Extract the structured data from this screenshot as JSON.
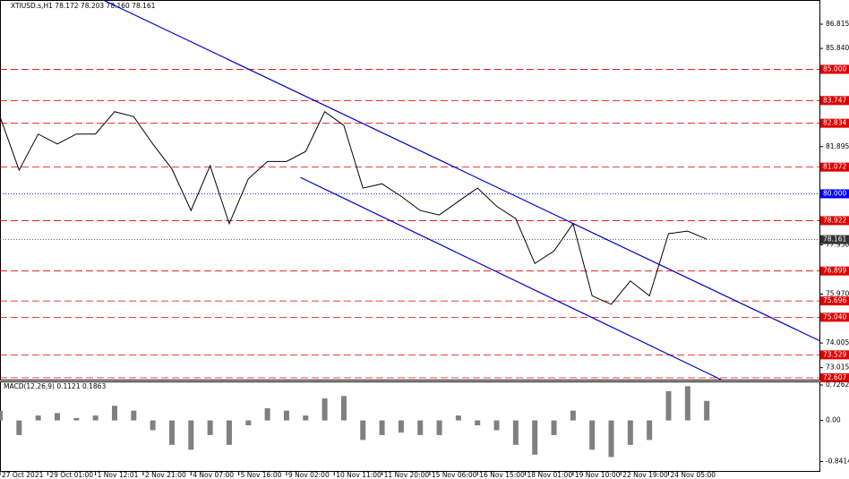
{
  "chart_data": {
    "type": "line",
    "title": "XTIUSD.s,H1  78.172 78.203 78.160 78.161",
    "xlim": [
      0,
      171.6
    ],
    "ylim": [
      72.535,
      87.786
    ],
    "xticks": [
      {
        "value": 0,
        "label": "27 Oct 2021"
      },
      {
        "value": 10,
        "label": "29 Oct 01:00"
      },
      {
        "value": 20,
        "label": "1 Nov 12:01"
      },
      {
        "value": 30,
        "label": "2 Nov 21:00"
      },
      {
        "value": 40,
        "label": "4 Nov 07:00"
      },
      {
        "value": 50,
        "label": "5 Nov 16:00"
      },
      {
        "value": 60,
        "label": "9 Nov 02:00"
      },
      {
        "value": 70,
        "label": "10 Nov 11:00"
      },
      {
        "value": 80,
        "label": "11 Nov 20:00"
      },
      {
        "value": 90,
        "label": "15 Nov 06:00"
      },
      {
        "value": 100,
        "label": "16 Nov 15:00"
      },
      {
        "value": 110,
        "label": "18 Nov 01:00"
      },
      {
        "value": 120,
        "label": "19 Nov 10:00"
      },
      {
        "value": 130,
        "label": "22 Nov 19:00"
      },
      {
        "value": 140,
        "label": "24 Nov 05:00"
      }
    ],
    "yticks": [
      86.815,
      {
        "value": 85.84,
        "label": "85.840"
      },
      81.895,
      {
        "value": 77.95,
        "label": "77.950"
      },
      {
        "value": 75.97,
        "label": "75.970"
      },
      74.005,
      73.015
    ],
    "levels": [
      {
        "value": 85,
        "label": "85.000",
        "color": "#e00000"
      },
      {
        "value": 83.747,
        "label": "83.747",
        "color": "#e00000"
      },
      {
        "value": 82.834,
        "label": "82.834",
        "color": "#e00000"
      },
      {
        "value": 81.072,
        "label": "81.072",
        "color": "#e00000"
      },
      {
        "value": 80,
        "label": "80.000",
        "color": "#0000ff"
      },
      {
        "value": 78.922,
        "label": "78.922",
        "color": "#e00000"
      },
      {
        "value": 78.161,
        "label": "78.161",
        "color": "#333333"
      },
      {
        "value": 76.899,
        "label": "76.899",
        "color": "#e00000"
      },
      {
        "value": 75.696,
        "label": "75.696",
        "color": "#e00000"
      },
      {
        "value": 75.04,
        "label": "75.040",
        "color": "#e00000"
      },
      {
        "value": 73.529,
        "label": "73.529",
        "color": "#e00000"
      },
      {
        "value": 72.607,
        "label": "72.607",
        "color": "#e00000"
      }
    ],
    "trendlines": [
      {
        "x": [
          21.6,
          171.6
        ],
        "values": [
          87.786,
          74.1
        ],
        "color": "#0000c8"
      },
      {
        "x": [
          62.9,
          151
        ],
        "values": [
          80.66,
          72.535
        ],
        "color": "#0000c8"
      }
    ],
    "series": [
      {
        "name": "XTIUSD.s",
        "color": "#000000",
        "x": [
          0,
          4,
          8,
          12,
          16,
          20,
          24,
          28,
          32,
          36,
          40,
          44,
          48,
          52,
          56,
          60,
          64,
          68,
          72,
          76,
          80,
          84,
          88,
          92,
          96,
          100,
          104,
          108,
          112,
          116,
          120,
          124,
          128,
          132,
          136,
          140,
          144,
          148
        ],
        "values": [
          83.1,
          80.95,
          82.4,
          82.0,
          82.4,
          82.4,
          83.3,
          83.1,
          82.0,
          81.0,
          79.33,
          81.13,
          78.8,
          80.6,
          81.3,
          81.3,
          81.7,
          83.3,
          82.75,
          80.23,
          80.4,
          79.9,
          79.33,
          79.15,
          79.7,
          80.23,
          79.5,
          79.0,
          77.2,
          77.7,
          78.8,
          75.9,
          75.56,
          76.5,
          75.9,
          78.4,
          78.5,
          78.18
        ]
      }
    ],
    "macd": {
      "label": "MACD(12,26,9) 0.1121 0.1863",
      "ylim": [
        -1.053,
        0.799
      ],
      "yticks": [
        0.7262,
        {
          "value": 0,
          "label": "0.00"
        },
        -0.8414
      ],
      "color": "#808080",
      "values": [
        0.2,
        -0.3,
        0.1,
        0.15,
        0.05,
        0.1,
        0.3,
        0.2,
        -0.2,
        -0.5,
        -0.6,
        -0.3,
        -0.5,
        -0.1,
        0.25,
        0.2,
        0.1,
        0.45,
        0.5,
        -0.4,
        -0.3,
        -0.25,
        -0.3,
        -0.3,
        0.1,
        -0.1,
        -0.2,
        -0.5,
        -0.7,
        -0.3,
        0.2,
        -0.6,
        -0.75,
        -0.5,
        -0.4,
        0.6,
        0.7,
        0.4
      ]
    }
  }
}
